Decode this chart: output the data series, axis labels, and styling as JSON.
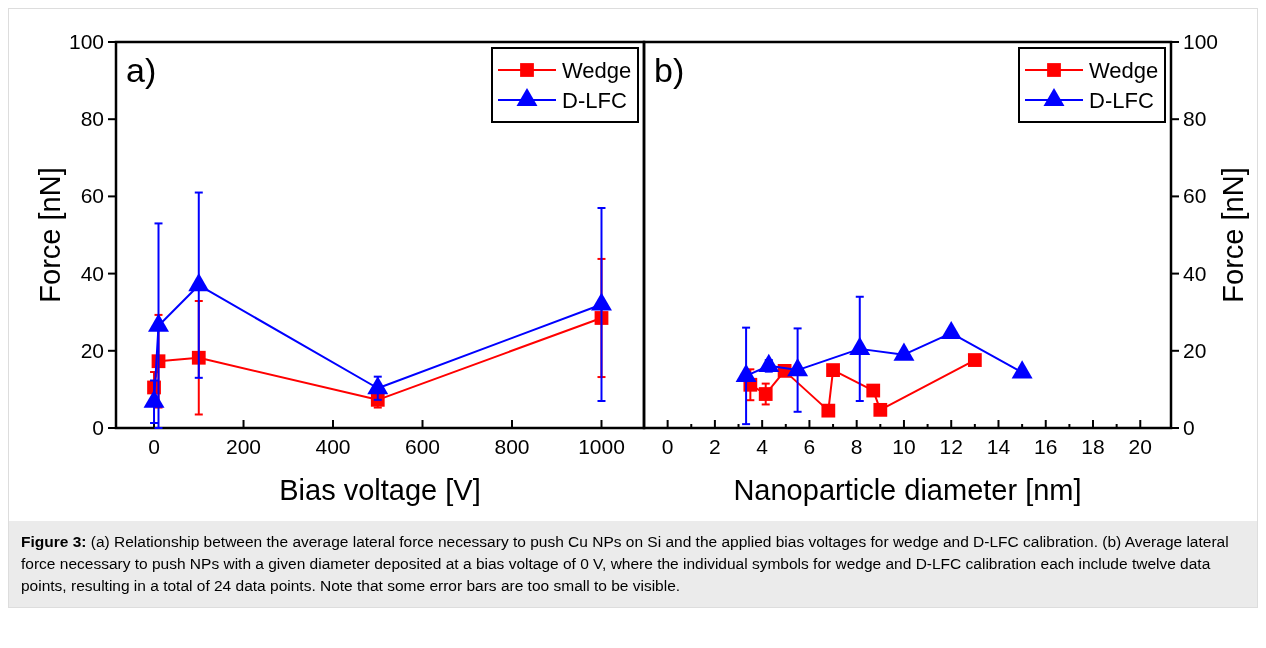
{
  "chart_data": [
    {
      "type": "line",
      "title": "a)",
      "xlabel": "Bias voltage [V]",
      "ylabel": "Force [nN]",
      "x": [
        0,
        10,
        100,
        500,
        1000
      ],
      "xlim": [
        -85,
        1095
      ],
      "xticks": [
        0,
        200,
        400,
        600,
        800,
        1000
      ],
      "ylim": [
        0,
        100
      ],
      "yticks": [
        0,
        20,
        40,
        60,
        80,
        100
      ],
      "legend": "top right",
      "grid": false,
      "series": [
        {
          "name": "Wedge",
          "color": "#ff0000",
          "marker": "square",
          "values": [
            10.5,
            17.3,
            18.2,
            7.3,
            28.5
          ],
          "errors": [
            4,
            12,
            14.7,
            2,
            15.3
          ]
        },
        {
          "name": "D-LFC",
          "color": "#0000ff",
          "marker": "triangle",
          "values": [
            6.8,
            26.5,
            37,
            10.3,
            32
          ],
          "errors": [
            5.5,
            26.5,
            24,
            3,
            25
          ]
        }
      ],
      "annotations": [
        "Figure 3: (a) Relationship between the average lateral force necessary to push Cu NPs on Si and the applied bias voltages for wedge and D-LFC calibration. (b) Average lateral force necessary to push NPs with a given diameter deposited at a bias voltage of 0 V, where the individual symbols for wedge and D-LFC calibration each include twelve data points, resulting in a total of 24 data points. Note that some error bars are too small to be visible."
      ]
    },
    {
      "type": "line",
      "title": "b)",
      "xlabel": "Nanoparticle diameter [nm]",
      "y2label": "Force [nN]",
      "xlim": [
        -1,
        21.3
      ],
      "xticks": [
        0,
        {
          "value": 1,
          "label": null
        },
        2,
        {
          "value": 3,
          "label": null
        },
        4,
        {
          "value": 5,
          "label": null
        },
        6,
        {
          "value": 7,
          "label": null
        },
        8,
        {
          "value": 9,
          "label": null
        },
        10,
        {
          "value": 11,
          "label": null
        },
        12,
        {
          "value": 13,
          "label": null
        },
        14,
        {
          "value": 15,
          "label": null
        },
        16,
        {
          "value": 17,
          "label": null
        },
        18,
        {
          "value": 19,
          "label": null
        },
        20
      ],
      "y2lim": [
        0,
        100
      ],
      "y2ticks": [
        0,
        20,
        40,
        60,
        80,
        100
      ],
      "legend": "top right",
      "grid": false,
      "series": [
        {
          "name": "Wedge",
          "color": "#ff0000",
          "marker": "square",
          "axis": "y2",
          "x": [
            3.5,
            4.15,
            4.95,
            6.8,
            7.0,
            8.7,
            9.0,
            13
          ],
          "values": [
            11.2,
            8.8,
            14.8,
            4.5,
            15,
            9.7,
            4.7,
            17.6
          ],
          "errors": [
            4,
            2.7,
            null,
            null,
            null,
            null,
            null,
            null
          ]
        },
        {
          "name": "D-LFC",
          "color": "#0000ff",
          "marker": "triangle",
          "axis": "y2",
          "x": [
            3.32,
            4.28,
            5.5,
            8.13,
            10,
            12,
            15
          ],
          "values": [
            13.5,
            16.1,
            15,
            20.5,
            19,
            24.6,
            14.4
          ],
          "errors": [
            12.5,
            1.5,
            10.8,
            13.5,
            null,
            null,
            null
          ]
        }
      ]
    }
  ]
}
